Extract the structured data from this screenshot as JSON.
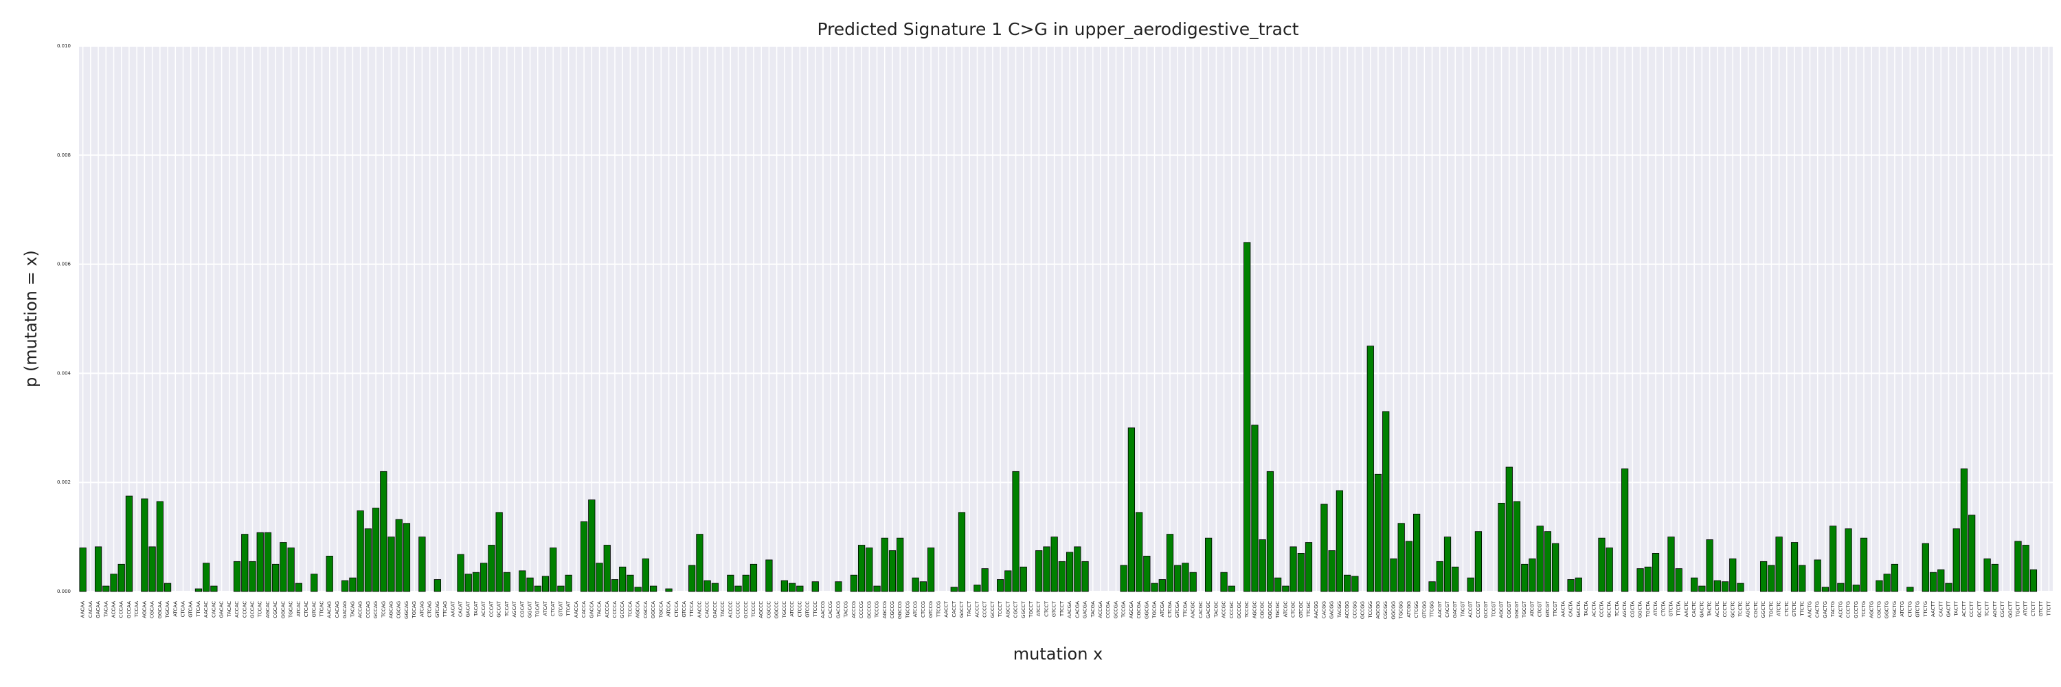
{
  "chart_data": {
    "type": "bar",
    "title": "Predicted Signature 1 C>G in upper_aerodigestive_tract",
    "xlabel": "mutation x",
    "ylabel": "p (mutation = x)",
    "color": "#008000",
    "edgecolor": "#000000",
    "grid": true,
    "ylim": [
      0,
      0.01
    ],
    "yticks": [
      {
        "value": 0,
        "label": "0.000"
      },
      {
        "value": 0.002,
        "label": "0.002"
      },
      {
        "value": 0.004,
        "label": "0.004"
      },
      {
        "value": 0.006,
        "label": "0.006"
      },
      {
        "value": 0.008,
        "label": "0.008"
      },
      {
        "value": 0.01,
        "label": "0.010"
      }
    ],
    "categories": [
      "AACAA",
      "CACAA",
      "GACAA",
      "TACAA",
      "ACCAA",
      "CCCAA",
      "GCCAA",
      "TCCAA",
      "AGCAA",
      "CGCAA",
      "GGCAA",
      "TGCAA",
      "ATCAA",
      "CTCAA",
      "GTCAA",
      "TTCAA",
      "AACAC",
      "CACAC",
      "GACAC",
      "TACAC",
      "ACCAC",
      "CCCAC",
      "GCCAC",
      "TCCAC",
      "AGCAC",
      "CGCAC",
      "GGCAC",
      "TGCAC",
      "ATCAC",
      "CTCAC",
      "GTCAC",
      "TTCAC",
      "AACAG",
      "CACAG",
      "GACAG",
      "TACAG",
      "ACCAG",
      "CCCAG",
      "GCCAG",
      "TCCAG",
      "AGCAG",
      "CGCAG",
      "GGCAG",
      "TGCAG",
      "ATCAG",
      "CTCAG",
      "GTCAG",
      "TTCAG",
      "AACAT",
      "CACAT",
      "GACAT",
      "TACAT",
      "ACCAT",
      "CCCAT",
      "GCCAT",
      "TCCAT",
      "AGCAT",
      "CGCAT",
      "GGCAT",
      "TGCAT",
      "ATCAT",
      "CTCAT",
      "GTCAT",
      "TTCAT",
      "AACCA",
      "CACCA",
      "GACCA",
      "TACCA",
      "ACCCA",
      "CCCCA",
      "GCCCA",
      "TCCCA",
      "AGCCA",
      "CGCCA",
      "GGCCA",
      "TGCCA",
      "ATCCA",
      "CTCCA",
      "GTCCA",
      "TTCCA",
      "AACCC",
      "CACCC",
      "GACCC",
      "TACCC",
      "ACCCC",
      "CCCCC",
      "GCCCC",
      "TCCCC",
      "AGCCC",
      "CGCCC",
      "GGCCC",
      "TGCCC",
      "ATCCC",
      "CTCCC",
      "GTCCC",
      "TTCCC",
      "AACCG",
      "CACCG",
      "GACCG",
      "TACCG",
      "ACCCG",
      "CCCCG",
      "GCCCG",
      "TCCCG",
      "AGCCG",
      "CGCCG",
      "GGCCG",
      "TGCCG",
      "ATCCG",
      "CTCCG",
      "GTCCG",
      "TTCCG",
      "AACCT",
      "CACCT",
      "GACCT",
      "TACCT",
      "ACCCT",
      "CCCCT",
      "GCCCT",
      "TCCCT",
      "AGCCT",
      "CGCCT",
      "GGCCT",
      "TGCCT",
      "ATCCT",
      "CTCCT",
      "GTCCT",
      "TTCCT",
      "AACGA",
      "CACGA",
      "GACGA",
      "TACGA",
      "ACCGA",
      "CCCGA",
      "GCCGA",
      "TCCGA",
      "AGCGA",
      "CGCGA",
      "GGCGA",
      "TGCGA",
      "ATCGA",
      "CTCGA",
      "GTCGA",
      "TTCGA",
      "AACGC",
      "CACGC",
      "GACGC",
      "TACGC",
      "ACCGC",
      "CCCGC",
      "GCCGC",
      "TCCGC",
      "AGCGC",
      "CGCGC",
      "GGCGC",
      "TGCGC",
      "ATCGC",
      "CTCGC",
      "GTCGC",
      "TTCGC",
      "AACGG",
      "CACGG",
      "GACGG",
      "TACGG",
      "ACCGG",
      "CCCGG",
      "GCCGG",
      "TCCGG",
      "AGCGG",
      "CGCGG",
      "GGCGG",
      "TGCGG",
      "ATCGG",
      "CTCGG",
      "GTCGG",
      "TTCGG",
      "AACGT",
      "CACGT",
      "GACGT",
      "TACGT",
      "ACCGT",
      "CCCGT",
      "GCCGT",
      "TCCGT",
      "AGCGT",
      "CGCGT",
      "GGCGT",
      "TGCGT",
      "ATCGT",
      "CTCGT",
      "GTCGT",
      "TTCGT",
      "AACTA",
      "CACTA",
      "GACTA",
      "TACTA",
      "ACCTA",
      "CCCTA",
      "GCCTA",
      "TCCTA",
      "AGCTA",
      "CGCTA",
      "GGCTA",
      "TGCTA",
      "ATCTA",
      "CTCTA",
      "GTCTA",
      "TTCTA",
      "AACTC",
      "CACTC",
      "GACTC",
      "TACTC",
      "ACCTC",
      "CCCTC",
      "GCCTC",
      "TCCTC",
      "AGCTC",
      "CGCTC",
      "GGCTC",
      "TGCTC",
      "ATCTC",
      "CTCTC",
      "GTCTC",
      "TTCTC",
      "AACTG",
      "CACTG",
      "GACTG",
      "TACTG",
      "ACCTG",
      "CCCTG",
      "GCCTG",
      "TCCTG",
      "AGCTG",
      "CGCTG",
      "GGCTG",
      "TGCTG",
      "ATCTG",
      "CTCTG",
      "GTCTG",
      "TTCTG",
      "AACTT",
      "CACTT",
      "GACTT",
      "TACTT",
      "ACCTT",
      "CCCTT",
      "GCCTT",
      "TCCTT",
      "AGCTT",
      "CGCTT",
      "GGCTT",
      "TGCTT",
      "ATCTT",
      "CTCTT",
      "GTCTT",
      "TTCTT"
    ],
    "values": [
      0.0008,
      0,
      0.00082,
      0.0001,
      0.00032,
      0.0005,
      0.00175,
      0,
      0.0017,
      0.00082,
      0.00165,
      0.00015,
      0,
      0,
      0,
      5e-05,
      0.00052,
      0.0001,
      0,
      0,
      0.00055,
      0.00105,
      0.00055,
      0.00108,
      0.00108,
      0.0005,
      0.0009,
      0.0008,
      0.00015,
      0,
      0.00032,
      0,
      0.00065,
      0,
      0.0002,
      0.00025,
      0.00148,
      0.00115,
      0.00153,
      0.0022,
      0.001,
      0.00132,
      0.00125,
      0,
      0.001,
      0,
      0.00022,
      0,
      0,
      0.00068,
      0.00032,
      0.00035,
      0.00052,
      0.00085,
      0.00145,
      0.00035,
      0,
      0.00038,
      0.00025,
      0.0001,
      0.00028,
      0.0008,
      0.0001,
      0.0003,
      0,
      0.00128,
      0.00168,
      0.00052,
      0.00085,
      0.00022,
      0.00045,
      0.0003,
      8e-05,
      0.0006,
      0.0001,
      0,
      5e-05,
      0,
      0,
      0.00048,
      0.00105,
      0.0002,
      0.00015,
      0,
      0.0003,
      0.0001,
      0.0003,
      0.0005,
      0,
      0.00058,
      0,
      0.0002,
      0.00015,
      0.0001,
      0,
      0.00018,
      0,
      0,
      0.00018,
      0,
      0.0003,
      0.00085,
      0.0008,
      0.0001,
      0.00098,
      0.00075,
      0.00098,
      0,
      0.00025,
      0.00018,
      0.0008,
      0,
      0,
      8e-05,
      0.00145,
      0,
      0.00012,
      0.00042,
      0,
      0.00022,
      0.00038,
      0.0022,
      0.00045,
      0,
      0.00075,
      0.00082,
      0.001,
      0.00055,
      0.00072,
      0.00082,
      0.00055,
      0,
      0,
      0,
      0,
      0.00048,
      0.003,
      0.00145,
      0.00065,
      0.00015,
      0.00022,
      0.00105,
      0.00048,
      0.00052,
      0.00035,
      0,
      0.00098,
      0,
      0.00035,
      0.0001,
      0,
      0.0064,
      0.00305,
      0.00095,
      0.0022,
      0.00025,
      0.0001,
      0.00082,
      0.0007,
      0.0009,
      0,
      0.0016,
      0.00075,
      0.00185,
      0.0003,
      0.00028,
      0,
      0.0045,
      0.00215,
      0.0033,
      0.0006,
      0.00125,
      0.00092,
      0.00142,
      0,
      0.00018,
      0.00055,
      0.001,
      0.00045,
      0,
      0.00025,
      0.0011,
      0,
      0,
      0.00162,
      0.00228,
      0.00165,
      0.0005,
      0.0006,
      0.0012,
      0.0011,
      0.00088,
      0,
      0.00022,
      0.00025,
      0,
      0,
      0.00098,
      0.0008,
      0,
      0.00225,
      0,
      0.00042,
      0.00045,
      0.0007,
      0,
      0.001,
      0.00042,
      0,
      0.00025,
      0.0001,
      0.00095,
      0.0002,
      0.00018,
      0.0006,
      0.00015,
      0,
      0,
      0.00055,
      0.00048,
      0.001,
      0,
      0.0009,
      0.00048,
      0,
      0.00058,
      8e-05,
      0.0012,
      0.00015,
      0.00115,
      0.00012,
      0.00098,
      0,
      0.0002,
      0.00032,
      0.0005,
      0,
      8e-05,
      0,
      0.00088,
      0.00035,
      0.0004,
      0.00015,
      0.00115,
      0.00225,
      0.0014,
      0,
      0.0006,
      0.0005,
      0,
      0,
      0.00092,
      0.00085,
      0.0004,
      0,
      0
    ]
  }
}
